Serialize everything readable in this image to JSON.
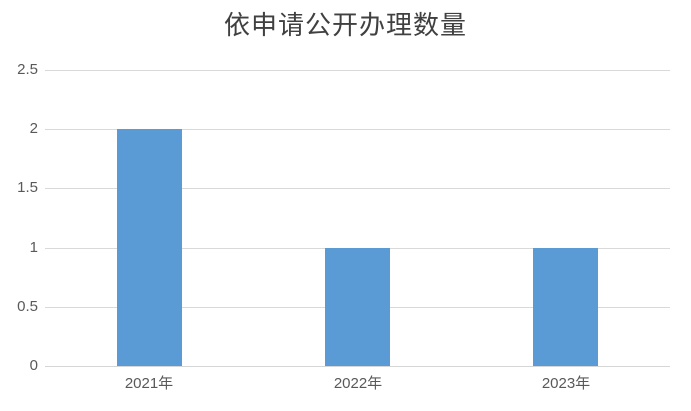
{
  "chart_data": {
    "type": "bar",
    "title": "依申请公开办理数量",
    "categories": [
      "2021年",
      "2022年",
      "2023年"
    ],
    "values": [
      2,
      1,
      1
    ],
    "ylim": [
      0,
      2.5
    ],
    "yticks": [
      0,
      0.5,
      1,
      1.5,
      2,
      2.5
    ],
    "ytick_labels": [
      "0",
      "0.5",
      "1",
      "1.5",
      "2",
      "2.5"
    ],
    "xlabel": "",
    "ylabel": "",
    "grid": true,
    "legend": false,
    "colors": {
      "bar": "#5B9BD5",
      "gridline": "#D9D9D9",
      "axis_line": "#D6D6D6",
      "tick_label": "#595959",
      "title": "#404040",
      "background": "#FFFFFF"
    }
  }
}
